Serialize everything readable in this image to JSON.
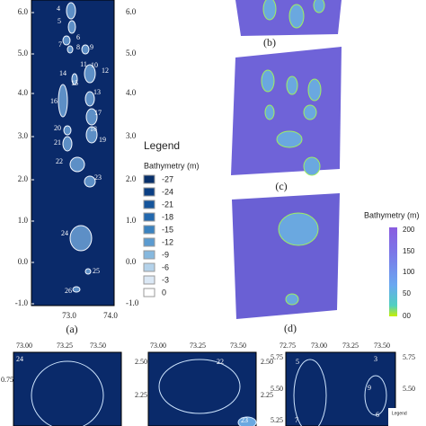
{
  "panel_a": {
    "label": "(a)",
    "y_ticks": [
      "6.0",
      "5.0",
      "4.0",
      "3.0",
      "2.0",
      "1.0",
      "0.0",
      "-1.0"
    ],
    "x_ticks": [
      "73.0",
      "74.0"
    ],
    "islands": [
      "4",
      "5",
      "6",
      "7",
      "8",
      "9",
      "10",
      "11",
      "12",
      "13",
      "14",
      "15",
      "16",
      "17",
      "18",
      "19",
      "20",
      "21",
      "22",
      "23",
      "24",
      "25",
      "26"
    ]
  },
  "legend": {
    "title": "Legend",
    "subtitle": "Bathymetry (m)",
    "items": [
      "-27",
      "-24",
      "-21",
      "-18",
      "-15",
      "-12",
      "-9",
      "-6",
      "-3",
      "0"
    ]
  },
  "panel_b": {
    "label": "(b)"
  },
  "panel_c": {
    "label": "(c)"
  },
  "panel_d": {
    "label": "(d)"
  },
  "colorbar": {
    "title": "Bathymetry (m)",
    "ticks": [
      "200",
      "150",
      "100",
      "50",
      "00"
    ]
  },
  "inset_1": {
    "x_ticks": [
      "73.00",
      "73.25",
      "73.50"
    ],
    "y_ticks": [
      "0.75"
    ],
    "islands": [
      "24"
    ]
  },
  "inset_2": {
    "x_ticks": [
      "73.00",
      "73.25",
      "73.50"
    ],
    "y_ticks": [
      "2.50",
      "2.25"
    ],
    "islands": [
      "22",
      "23"
    ]
  },
  "inset_3": {
    "x_ticks": [
      "72.75",
      "73.00",
      "73.25",
      "73.50"
    ],
    "y_ticks": [
      "5.75",
      "5.50",
      "5.25"
    ],
    "islands": [
      "5",
      "3",
      "9",
      "7",
      "6"
    ],
    "legend": "Legend"
  }
}
